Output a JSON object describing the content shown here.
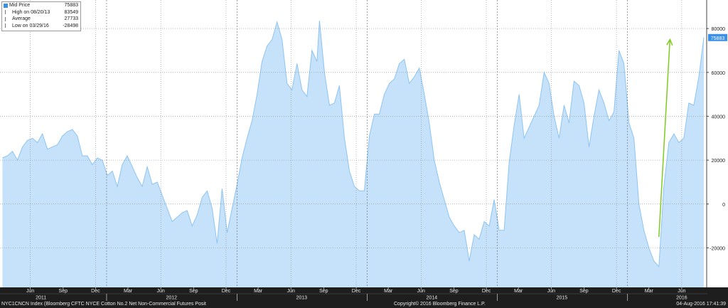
{
  "legend": {
    "rows": [
      {
        "label": "Mid Price",
        "value": "75883",
        "swatch": "filled"
      },
      {
        "label": "High on 08/20/13",
        "value": "83549",
        "swatch": "tick"
      },
      {
        "label": "Average",
        "value": "27733",
        "swatch": "tick"
      },
      {
        "label": "Low on 03/29/16",
        "value": "-28498",
        "swatch": "tick"
      }
    ]
  },
  "last_price_badge": "75883",
  "footer": {
    "left": "NYC1CNCN Index (Bloomberg CFTC NYCE Cotton No.2 Net Non-Commercial Futures Posit",
    "center": "Copyright© 2016 Bloomberg Finance L.P.",
    "right": "04-Aug-2016 17:41:39"
  },
  "colors": {
    "area_fill": "#c6e2fb",
    "area_line": "#8ec4f0",
    "badge": "#3a8fe8",
    "arrow": "#7ecb1f",
    "axis_bar": "#1e1e1e"
  },
  "chart_data": {
    "type": "area",
    "title": "",
    "xlabel": "",
    "ylabel": "",
    "ylim": [
      -38000,
      93000
    ],
    "yticks": [
      80000,
      60000,
      40000,
      20000,
      0,
      -20000
    ],
    "ytick_labels": [
      "80000",
      "60000",
      "40000",
      "20000",
      "0",
      "-20000"
    ],
    "grid": true,
    "x_month_ticks": [
      {
        "date": "2011-06-01",
        "label": "Jun"
      },
      {
        "date": "2011-09-01",
        "label": "Sep"
      },
      {
        "date": "2011-12-01",
        "label": "Dec"
      },
      {
        "date": "2012-03-01",
        "label": "Mar"
      },
      {
        "date": "2012-06-01",
        "label": "Jun"
      },
      {
        "date": "2012-09-01",
        "label": "Sep"
      },
      {
        "date": "2012-12-01",
        "label": "Dec"
      },
      {
        "date": "2013-03-01",
        "label": "Mar"
      },
      {
        "date": "2013-06-01",
        "label": "Jun"
      },
      {
        "date": "2013-09-01",
        "label": "Sep"
      },
      {
        "date": "2013-12-01",
        "label": "Dec"
      },
      {
        "date": "2014-03-01",
        "label": "Mar"
      },
      {
        "date": "2014-06-01",
        "label": "Jun"
      },
      {
        "date": "2014-09-01",
        "label": "Sep"
      },
      {
        "date": "2014-12-01",
        "label": "Dec"
      },
      {
        "date": "2015-03-01",
        "label": "Mar"
      },
      {
        "date": "2015-06-01",
        "label": "Jun"
      },
      {
        "date": "2015-09-01",
        "label": "Sep"
      },
      {
        "date": "2015-12-01",
        "label": "Dec"
      },
      {
        "date": "2016-03-01",
        "label": "Mar"
      },
      {
        "date": "2016-06-01",
        "label": "Jun"
      }
    ],
    "x_year_labels": [
      {
        "date": "2011-07-01",
        "label": "2011"
      },
      {
        "date": "2012-07-01",
        "label": "2012"
      },
      {
        "date": "2013-07-01",
        "label": "2013"
      },
      {
        "date": "2014-07-01",
        "label": "2014"
      },
      {
        "date": "2015-07-01",
        "label": "2015"
      },
      {
        "date": "2016-06-01",
        "label": "2016"
      }
    ],
    "annotations": [
      {
        "type": "arrow",
        "from": {
          "date": "2016-03-29",
          "value": -15000
        },
        "to": {
          "date": "2016-04-29",
          "value": 75000
        }
      }
    ],
    "series": [
      {
        "x": [
          "2011-03-15",
          "2011-03-29",
          "2011-04-12",
          "2011-04-26",
          "2011-05-10",
          "2011-05-24",
          "2011-06-07",
          "2011-06-21",
          "2011-07-05",
          "2011-07-19",
          "2011-08-02",
          "2011-08-16",
          "2011-08-30",
          "2011-09-13",
          "2011-09-27",
          "2011-10-11",
          "2011-10-25",
          "2011-11-08",
          "2011-11-22",
          "2011-12-06",
          "2011-12-20",
          "2012-01-03",
          "2012-01-17",
          "2012-01-31",
          "2012-02-14",
          "2012-02-28",
          "2012-03-13",
          "2012-03-27",
          "2012-04-10",
          "2012-04-24",
          "2012-05-08",
          "2012-05-22",
          "2012-06-05",
          "2012-06-19",
          "2012-07-03",
          "2012-07-17",
          "2012-07-31",
          "2012-08-14",
          "2012-08-28",
          "2012-09-11",
          "2012-09-25",
          "2012-10-09",
          "2012-10-23",
          "2012-11-06",
          "2012-11-20",
          "2012-12-04",
          "2012-12-18",
          "2013-01-01",
          "2013-01-15",
          "2013-01-29",
          "2013-02-12",
          "2013-02-26",
          "2013-03-12",
          "2013-03-26",
          "2013-04-09",
          "2013-04-23",
          "2013-05-07",
          "2013-05-21",
          "2013-06-04",
          "2013-06-18",
          "2013-07-02",
          "2013-07-16",
          "2013-07-30",
          "2013-08-13",
          "2013-08-20",
          "2013-09-03",
          "2013-09-17",
          "2013-10-01",
          "2013-10-15",
          "2013-10-29",
          "2013-11-12",
          "2013-11-26",
          "2013-12-10",
          "2013-12-24",
          "2014-01-07",
          "2014-01-21",
          "2014-02-04",
          "2014-02-18",
          "2014-03-04",
          "2014-03-18",
          "2014-04-01",
          "2014-04-15",
          "2014-04-29",
          "2014-05-13",
          "2014-05-27",
          "2014-06-10",
          "2014-06-24",
          "2014-07-08",
          "2014-07-22",
          "2014-08-05",
          "2014-08-19",
          "2014-09-02",
          "2014-09-16",
          "2014-09-30",
          "2014-10-14",
          "2014-10-28",
          "2014-11-11",
          "2014-11-25",
          "2014-12-09",
          "2014-12-23",
          "2015-01-06",
          "2015-01-20",
          "2015-02-03",
          "2015-02-17",
          "2015-03-03",
          "2015-03-17",
          "2015-03-31",
          "2015-04-14",
          "2015-04-28",
          "2015-05-12",
          "2015-05-26",
          "2015-06-09",
          "2015-06-23",
          "2015-07-07",
          "2015-07-21",
          "2015-08-04",
          "2015-08-18",
          "2015-09-01",
          "2015-09-15",
          "2015-09-29",
          "2015-10-13",
          "2015-10-27",
          "2015-11-10",
          "2015-11-24",
          "2015-12-08",
          "2015-12-22",
          "2016-01-05",
          "2016-01-19",
          "2016-02-02",
          "2016-02-16",
          "2016-03-01",
          "2016-03-15",
          "2016-03-29",
          "2016-04-12",
          "2016-04-26",
          "2016-05-10",
          "2016-05-24",
          "2016-06-07",
          "2016-06-21",
          "2016-07-05",
          "2016-07-19",
          "2016-08-02"
        ],
        "values": [
          21000,
          22000,
          24000,
          20000,
          26000,
          29000,
          30000,
          28000,
          32000,
          25000,
          26000,
          27000,
          31000,
          33000,
          34000,
          31000,
          22000,
          22000,
          18000,
          21000,
          20000,
          13000,
          15000,
          8000,
          18000,
          22000,
          17000,
          12000,
          8000,
          17000,
          9000,
          10000,
          4000,
          -2000,
          -8000,
          -6000,
          -4000,
          -3000,
          -10000,
          -5000,
          3000,
          6000,
          -2000,
          -18000,
          7000,
          -13000,
          -2000,
          9000,
          21000,
          30000,
          38000,
          50000,
          65000,
          72000,
          75000,
          83000,
          75000,
          55000,
          52000,
          64000,
          52000,
          49000,
          70000,
          65000,
          83549,
          60000,
          45000,
          46000,
          54000,
          30000,
          15000,
          8000,
          6000,
          6000,
          31000,
          41000,
          41000,
          50000,
          55000,
          57000,
          64000,
          66000,
          55000,
          58000,
          62000,
          50000,
          37000,
          20000,
          10000,
          2000,
          -6000,
          -10000,
          -13000,
          -12000,
          -26000,
          -14000,
          -16000,
          -8000,
          -10000,
          2000,
          -12000,
          -12000,
          19000,
          36000,
          50000,
          30000,
          35000,
          40000,
          45000,
          60000,
          55000,
          40000,
          30000,
          45000,
          37000,
          56000,
          54000,
          46000,
          26000,
          40000,
          52000,
          46000,
          38000,
          42000,
          70000,
          64000,
          37000,
          30000,
          0,
          -12000,
          -20000,
          -26000,
          -28498,
          8000,
          28000,
          32000,
          28000,
          30000,
          46000,
          45000,
          58000,
          75883
        ]
      }
    ]
  }
}
